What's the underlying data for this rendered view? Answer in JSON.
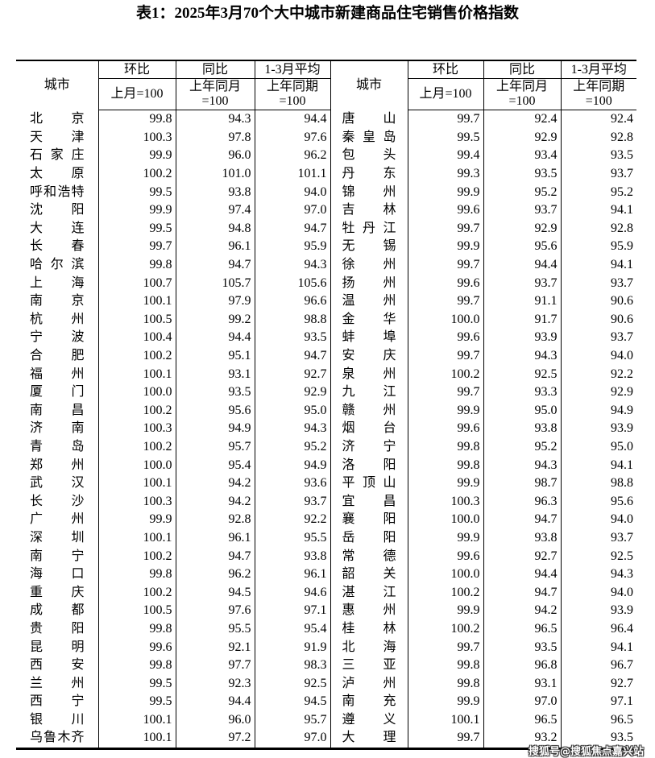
{
  "title": "表1：2025年3月70个大中城市新建商品住宅销售价格指数",
  "header": {
    "city": "城市",
    "mom": "环比",
    "yoy": "同比",
    "avg": "1-3月平均",
    "mom_base": "上月=100",
    "yoy_base_1": "上年同月",
    "yoy_base_2": "=100",
    "avg_base_1": "上年同期",
    "avg_base_2": "=100"
  },
  "left_rows": [
    [
      "北京",
      "99.8",
      "94.3",
      "94.4"
    ],
    [
      "天津",
      "100.3",
      "97.8",
      "97.6"
    ],
    [
      "石家庄",
      "99.9",
      "96.0",
      "96.2"
    ],
    [
      "太原",
      "100.2",
      "101.0",
      "101.1"
    ],
    [
      "呼和浩特",
      "99.5",
      "93.8",
      "94.0"
    ],
    [
      "沈阳",
      "99.9",
      "97.4",
      "97.0"
    ],
    [
      "大连",
      "99.5",
      "94.8",
      "94.7"
    ],
    [
      "长春",
      "99.7",
      "96.1",
      "95.9"
    ],
    [
      "哈尔滨",
      "99.8",
      "94.7",
      "94.3"
    ],
    [
      "上海",
      "100.7",
      "105.7",
      "105.6"
    ],
    [
      "南京",
      "100.1",
      "97.9",
      "96.6"
    ],
    [
      "杭州",
      "100.5",
      "99.2",
      "98.8"
    ],
    [
      "宁波",
      "100.4",
      "94.4",
      "93.5"
    ],
    [
      "合肥",
      "100.2",
      "95.1",
      "94.7"
    ],
    [
      "福州",
      "100.1",
      "93.1",
      "92.7"
    ],
    [
      "厦门",
      "100.0",
      "93.5",
      "92.9"
    ],
    [
      "南昌",
      "100.2",
      "95.6",
      "95.0"
    ],
    [
      "济南",
      "100.3",
      "94.9",
      "94.3"
    ],
    [
      "青岛",
      "100.2",
      "95.7",
      "95.2"
    ],
    [
      "郑州",
      "100.0",
      "95.4",
      "94.9"
    ],
    [
      "武汉",
      "100.1",
      "94.2",
      "93.6"
    ],
    [
      "长沙",
      "100.3",
      "94.2",
      "93.7"
    ],
    [
      "广州",
      "99.9",
      "92.8",
      "92.2"
    ],
    [
      "深圳",
      "100.1",
      "96.1",
      "95.5"
    ],
    [
      "南宁",
      "100.2",
      "94.7",
      "93.8"
    ],
    [
      "海口",
      "99.8",
      "96.2",
      "96.1"
    ],
    [
      "重庆",
      "100.2",
      "94.5",
      "94.6"
    ],
    [
      "成都",
      "100.5",
      "97.6",
      "97.1"
    ],
    [
      "贵阳",
      "99.8",
      "95.5",
      "95.4"
    ],
    [
      "昆明",
      "99.6",
      "92.1",
      "91.9"
    ],
    [
      "西安",
      "99.8",
      "97.7",
      "98.3"
    ],
    [
      "兰州",
      "99.5",
      "92.3",
      "92.5"
    ],
    [
      "西宁",
      "99.5",
      "94.4",
      "94.5"
    ],
    [
      "银川",
      "100.1",
      "96.0",
      "95.7"
    ],
    [
      "乌鲁木齐",
      "100.1",
      "97.2",
      "97.0"
    ]
  ],
  "right_rows": [
    [
      "唐山",
      "99.7",
      "92.4",
      "92.4"
    ],
    [
      "秦皇岛",
      "99.5",
      "92.9",
      "92.8"
    ],
    [
      "包头",
      "99.4",
      "93.4",
      "93.5"
    ],
    [
      "丹东",
      "99.3",
      "93.5",
      "93.7"
    ],
    [
      "锦州",
      "99.9",
      "95.2",
      "95.2"
    ],
    [
      "吉林",
      "99.6",
      "93.7",
      "94.1"
    ],
    [
      "牡丹江",
      "99.7",
      "92.9",
      "92.8"
    ],
    [
      "无锡",
      "99.9",
      "95.6",
      "95.9"
    ],
    [
      "徐州",
      "99.7",
      "94.4",
      "94.1"
    ],
    [
      "扬州",
      "99.6",
      "93.7",
      "93.7"
    ],
    [
      "温州",
      "99.7",
      "91.1",
      "90.6"
    ],
    [
      "金华",
      "100.0",
      "91.7",
      "90.6"
    ],
    [
      "蚌埠",
      "99.6",
      "93.9",
      "93.7"
    ],
    [
      "安庆",
      "99.7",
      "94.3",
      "94.0"
    ],
    [
      "泉州",
      "100.2",
      "92.5",
      "92.2"
    ],
    [
      "九江",
      "99.7",
      "93.3",
      "92.9"
    ],
    [
      "赣州",
      "99.9",
      "95.0",
      "94.9"
    ],
    [
      "烟台",
      "99.6",
      "93.8",
      "93.9"
    ],
    [
      "济宁",
      "99.8",
      "95.2",
      "95.0"
    ],
    [
      "洛阳",
      "99.8",
      "94.3",
      "94.1"
    ],
    [
      "平顶山",
      "99.9",
      "98.7",
      "98.8"
    ],
    [
      "宜昌",
      "100.3",
      "96.3",
      "95.6"
    ],
    [
      "襄阳",
      "100.0",
      "94.7",
      "94.0"
    ],
    [
      "岳阳",
      "99.9",
      "93.8",
      "93.7"
    ],
    [
      "常德",
      "99.6",
      "92.7",
      "92.5"
    ],
    [
      "韶关",
      "100.0",
      "94.4",
      "94.3"
    ],
    [
      "湛江",
      "100.2",
      "94.7",
      "94.0"
    ],
    [
      "惠州",
      "99.9",
      "94.2",
      "93.9"
    ],
    [
      "桂林",
      "100.2",
      "96.5",
      "96.4"
    ],
    [
      "北海",
      "99.7",
      "93.5",
      "94.1"
    ],
    [
      "三亚",
      "99.8",
      "96.8",
      "96.7"
    ],
    [
      "泸州",
      "99.8",
      "93.1",
      "92.7"
    ],
    [
      "南充",
      "99.9",
      "97.0",
      "97.1"
    ],
    [
      "遵义",
      "100.1",
      "96.5",
      "96.5"
    ],
    [
      "大理",
      "99.7",
      "93.2",
      "93.5"
    ]
  ],
  "watermark": "搜狐号@搜狐焦点嘉兴站"
}
